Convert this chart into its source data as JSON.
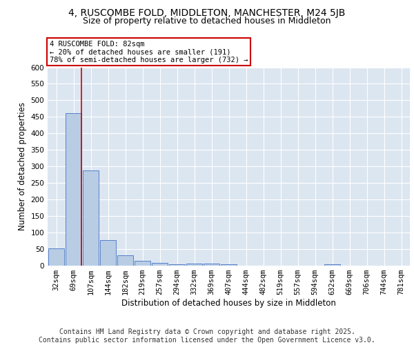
{
  "title1": "4, RUSCOMBE FOLD, MIDDLETON, MANCHESTER, M24 5JB",
  "title2": "Size of property relative to detached houses in Middleton",
  "xlabel": "Distribution of detached houses by size in Middleton",
  "ylabel": "Number of detached properties",
  "footer1": "Contains HM Land Registry data © Crown copyright and database right 2025.",
  "footer2": "Contains public sector information licensed under the Open Government Licence v3.0.",
  "categories": [
    "32sqm",
    "69sqm",
    "107sqm",
    "144sqm",
    "182sqm",
    "219sqm",
    "257sqm",
    "294sqm",
    "332sqm",
    "369sqm",
    "407sqm",
    "444sqm",
    "482sqm",
    "519sqm",
    "557sqm",
    "594sqm",
    "632sqm",
    "669sqm",
    "706sqm",
    "744sqm",
    "781sqm"
  ],
  "values": [
    52,
    462,
    287,
    77,
    31,
    15,
    9,
    5,
    7,
    6,
    5,
    0,
    0,
    0,
    0,
    0,
    5,
    0,
    0,
    0,
    0
  ],
  "bar_color": "#b8cce4",
  "bar_edge_color": "#4472c4",
  "background_color": "#dce6f1",
  "grid_color": "#ffffff",
  "annotation_text": "4 RUSCOMBE FOLD: 82sqm\n← 20% of detached houses are smaller (191)\n78% of semi-detached houses are larger (732) →",
  "annotation_box_color": "#ffffff",
  "annotation_border_color": "#cc0000",
  "vline_color": "#cc0000",
  "vline_x_index": 1,
  "ylim": [
    0,
    600
  ],
  "yticks": [
    0,
    50,
    100,
    150,
    200,
    250,
    300,
    350,
    400,
    450,
    500,
    550,
    600
  ],
  "title_fontsize": 10,
  "subtitle_fontsize": 9,
  "axis_label_fontsize": 8.5,
  "tick_fontsize": 7.5,
  "footer_fontsize": 7,
  "annotation_fontsize": 7.5
}
